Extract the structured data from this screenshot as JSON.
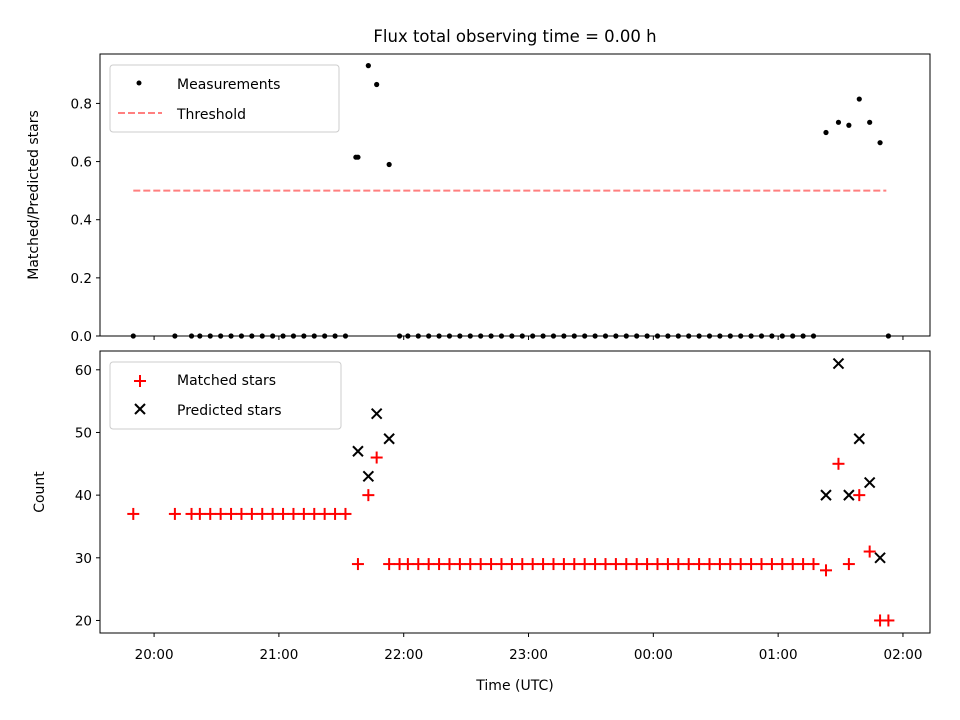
{
  "title": "Flux total observing time = 0.00 h",
  "xlabel": "Time (UTC)",
  "colors": {
    "threshold": "#ff7f7f",
    "matched": "#ff0000",
    "predicted": "#000000",
    "measurement": "#000000"
  },
  "chart_data": [
    {
      "type": "scatter",
      "ylabel": "Matched/Predicted stars",
      "ylim": [
        0,
        0.97
      ],
      "xlim": [
        "19:34",
        "02:13"
      ],
      "yticks": [
        "0.0",
        "0.2",
        "0.4",
        "0.6",
        "0.8"
      ],
      "xticks": [
        "20:00",
        "21:00",
        "22:00",
        "23:00",
        "00:00",
        "01:00",
        "02:00"
      ],
      "legend": {
        "placement": "upper left",
        "entries": [
          "Measurements",
          "Threshold"
        ]
      },
      "threshold": {
        "name": "Threshold",
        "value": 0.5,
        "x_range": [
          "19:50",
          "01:52"
        ]
      },
      "series": [
        {
          "name": "Measurements",
          "x": [
            "19:50",
            "20:10",
            "20:18",
            "20:22",
            "20:27",
            "20:32",
            "20:37",
            "20:42",
            "20:47",
            "20:52",
            "20:57",
            "21:02",
            "21:07",
            "21:12",
            "21:17",
            "21:22",
            "21:27",
            "21:32",
            "21:37",
            "21:38",
            "21:43",
            "21:47",
            "21:53",
            "21:58",
            "22:02",
            "22:07",
            "22:12",
            "22:17",
            "22:22",
            "22:27",
            "22:32",
            "22:37",
            "22:42",
            "22:47",
            "22:52",
            "22:57",
            "23:02",
            "23:07",
            "23:12",
            "23:17",
            "23:22",
            "23:27",
            "23:32",
            "23:37",
            "23:42",
            "23:47",
            "23:52",
            "23:57",
            "00:02",
            "00:07",
            "00:12",
            "00:17",
            "00:22",
            "00:27",
            "00:32",
            "00:37",
            "00:42",
            "00:47",
            "00:52",
            "00:57",
            "01:02",
            "01:07",
            "01:12",
            "01:17",
            "01:23",
            "01:29",
            "01:34",
            "01:39",
            "01:44",
            "01:49",
            "01:53"
          ],
          "y": [
            0,
            0,
            0,
            0,
            0,
            0,
            0,
            0,
            0,
            0,
            0,
            0,
            0,
            0,
            0,
            0,
            0,
            0,
            0.615,
            0.615,
            0.93,
            0.865,
            0.59,
            0,
            0,
            0,
            0,
            0,
            0,
            0,
            0,
            0,
            0,
            0,
            0,
            0,
            0,
            0,
            0,
            0,
            0,
            0,
            0,
            0,
            0,
            0,
            0,
            0,
            0,
            0,
            0,
            0,
            0,
            0,
            0,
            0,
            0,
            0,
            0,
            0,
            0,
            0,
            0,
            0,
            0.7,
            0.735,
            0.725,
            0.815,
            0.735,
            0.665,
            0
          ]
        }
      ]
    },
    {
      "type": "scatter",
      "ylabel": "Count",
      "ylim": [
        18,
        63
      ],
      "xlim": [
        "19:34",
        "02:13"
      ],
      "yticks": [
        "20",
        "30",
        "40",
        "50",
        "60"
      ],
      "xticks": [
        "20:00",
        "21:00",
        "22:00",
        "23:00",
        "00:00",
        "01:00",
        "02:00"
      ],
      "legend": {
        "placement": "upper left",
        "entries": [
          "Matched stars",
          "Predicted stars"
        ]
      },
      "series": [
        {
          "name": "Matched stars",
          "x": [
            "19:50",
            "20:10",
            "20:18",
            "20:22",
            "20:27",
            "20:32",
            "20:37",
            "20:42",
            "20:47",
            "20:52",
            "20:57",
            "21:02",
            "21:07",
            "21:12",
            "21:17",
            "21:22",
            "21:27",
            "21:32",
            "21:38",
            "21:43",
            "21:47",
            "21:53",
            "21:58",
            "22:02",
            "22:07",
            "22:12",
            "22:17",
            "22:22",
            "22:27",
            "22:32",
            "22:37",
            "22:42",
            "22:47",
            "22:52",
            "22:57",
            "23:02",
            "23:07",
            "23:12",
            "23:17",
            "23:22",
            "23:27",
            "23:32",
            "23:37",
            "23:42",
            "23:47",
            "23:52",
            "23:57",
            "00:02",
            "00:07",
            "00:12",
            "00:17",
            "00:22",
            "00:27",
            "00:32",
            "00:37",
            "00:42",
            "00:47",
            "00:52",
            "00:57",
            "01:02",
            "01:07",
            "01:12",
            "01:17",
            "01:23",
            "01:29",
            "01:34",
            "01:39",
            "01:44",
            "01:49",
            "01:53"
          ],
          "y": [
            37,
            37,
            37,
            37,
            37,
            37,
            37,
            37,
            37,
            37,
            37,
            37,
            37,
            37,
            37,
            37,
            37,
            37,
            29,
            40,
            46,
            29,
            29,
            29,
            29,
            29,
            29,
            29,
            29,
            29,
            29,
            29,
            29,
            29,
            29,
            29,
            29,
            29,
            29,
            29,
            29,
            29,
            29,
            29,
            29,
            29,
            29,
            29,
            29,
            29,
            29,
            29,
            29,
            29,
            29,
            29,
            29,
            29,
            29,
            29,
            29,
            29,
            29,
            28,
            45,
            29,
            40,
            31,
            20,
            20
          ]
        },
        {
          "name": "Predicted stars",
          "x": [
            "21:38",
            "21:43",
            "21:47",
            "21:53",
            "01:23",
            "01:29",
            "01:34",
            "01:39",
            "01:44",
            "01:49"
          ],
          "y": [
            47,
            43,
            53,
            49,
            40,
            61,
            40,
            49,
            42,
            30
          ]
        }
      ]
    }
  ]
}
